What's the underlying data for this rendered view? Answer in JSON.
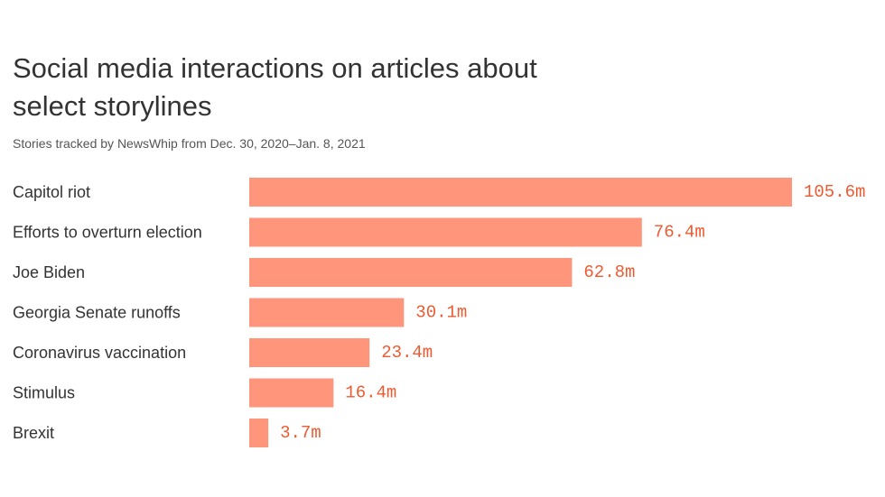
{
  "title": "Social media interactions on articles about select storylines",
  "subtitle": "Stories tracked by NewsWhip from Dec. 30, 2020–Jan. 8, 2021",
  "colors": {
    "bar": "#ff967c",
    "value_text": "#ee5a30",
    "text": "#333333"
  },
  "chart_data": {
    "type": "bar",
    "orientation": "horizontal",
    "categories": [
      "Capitol riot",
      "Efforts to overturn election",
      "Joe Biden",
      "Georgia Senate runoffs",
      "Coronavirus vaccination",
      "Stimulus",
      "Brexit"
    ],
    "values": [
      105.6,
      76.4,
      62.8,
      30.1,
      23.4,
      16.4,
      3.7
    ],
    "value_labels": [
      "105.6m",
      "76.4m",
      "62.8m",
      "30.1m",
      "23.4m",
      "16.4m",
      "3.7m"
    ],
    "unit": "m",
    "xlim": [
      0,
      105.6
    ],
    "grid": false,
    "legend": "none"
  }
}
